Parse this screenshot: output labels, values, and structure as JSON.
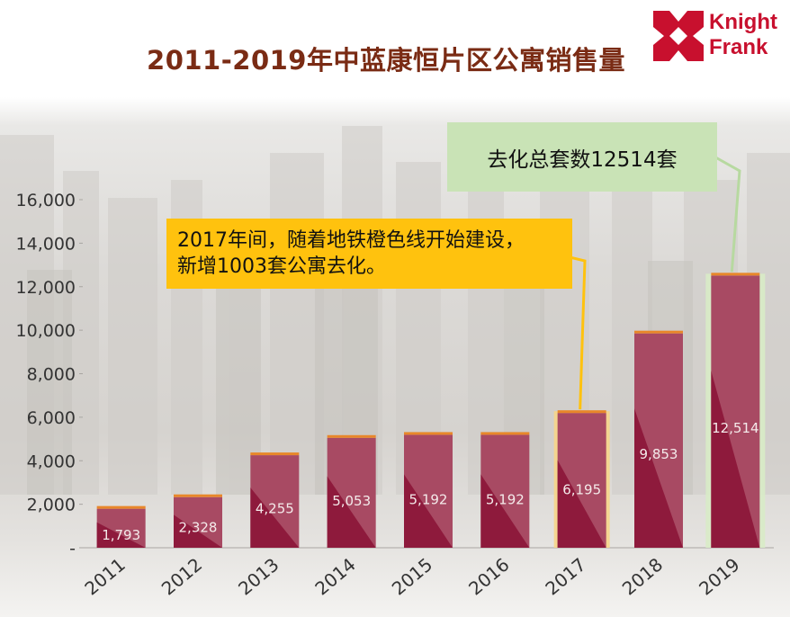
{
  "title": "2011-2019年中蓝康恒片区公寓销售量",
  "logo": {
    "line1": "Knight",
    "line2": "Frank",
    "brand_color": "#c8102e"
  },
  "callouts": {
    "total": "去化总套数12514套",
    "note_line1": "2017年间，随着地铁橙色线开始建设，",
    "note_line2": "新增1003套公寓去化。"
  },
  "colors": {
    "bar": "#8e1a3c",
    "bar_light": "#a84a63",
    "bar_top": "#e8872a",
    "title": "#7a2b14",
    "callout_green": "#c9e3b6",
    "callout_yellow": "#ffc20e"
  },
  "chart_data": {
    "type": "bar",
    "categories": [
      "2011",
      "2012",
      "2013",
      "2014",
      "2015",
      "2016",
      "2017",
      "2018",
      "2019"
    ],
    "values": [
      1793,
      2328,
      4255,
      5053,
      5192,
      5192,
      6195,
      9853,
      12514
    ],
    "data_labels": [
      "1,793",
      "2,328",
      "4,255",
      "5,053",
      "5,192",
      "5,192",
      "6,195",
      "9,853",
      "12,514"
    ],
    "y_ticks": [
      0,
      2000,
      4000,
      6000,
      8000,
      10000,
      12000,
      14000,
      16000
    ],
    "y_tick_labels": [
      "-",
      "2,000",
      "4,000",
      "6,000",
      "8,000",
      "10,000",
      "12,000",
      "14,000",
      "16,000"
    ],
    "ylim": [
      0,
      16000
    ],
    "title": "2011-2019年中蓝康恒片区公寓销售量",
    "xlabel": "",
    "ylabel": "",
    "grid": false,
    "legend": "none"
  }
}
